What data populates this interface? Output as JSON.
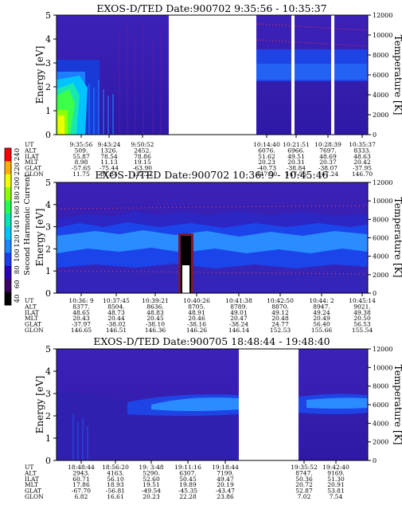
{
  "figure": {
    "colorbar": {
      "title": "Second Harmonic Current",
      "ticks": [
        "40",
        "60",
        "80",
        "100",
        "120",
        "140",
        "160",
        "180",
        "200",
        "220",
        "240"
      ],
      "colors": [
        "#000000",
        "#3a0066",
        "#2a00b8",
        "#1c3cf0",
        "#1a86ff",
        "#00c6ff",
        "#00e6b4",
        "#22ff50",
        "#8cff00",
        "#f0ff00",
        "#ffb000",
        "#ff0000"
      ]
    }
  },
  "chart_data": [
    {
      "type": "heatmap",
      "title": "EXOS-D/TED   Date:900702   9:35:56 - 10:35:37",
      "ylabel": "Energy [eV]",
      "y2label": "Temperature [K]",
      "ylim": [
        0,
        5
      ],
      "y2lim": [
        0,
        12000
      ],
      "yticks": [
        "0",
        "1",
        "2",
        "3",
        "4",
        "5"
      ],
      "y2ticks": [
        "0",
        "2000",
        "4000",
        "6000",
        "8000",
        "10000",
        "12000"
      ],
      "data_gaps": "no data 9:56 - 10:14; small gaps after 10:21 and 10:28",
      "orbit_table": {
        "row_labels": [
          "UT",
          "ALT",
          "ILAT",
          "MLT",
          "GLAT",
          "GLON"
        ],
        "columns": [
          [
            "9:35:56",
            "509.",
            "55.87",
            "8.98",
            "-57.65",
            "11.75"
          ],
          [
            "9:43:24",
            "1326.",
            "78.54",
            "11.13",
            "-75.44",
            "81.84"
          ],
          [
            "9:50:52",
            "2452.",
            "78.86",
            "19.15",
            "-63.90",
            "132.22"
          ],
          [
            "10:14:40",
            "6076.",
            "51.62",
            "20.23",
            "-40.73",
            "147.50"
          ],
          [
            "10:21:51",
            "6966.",
            "49.51",
            "20.31",
            "-38.84",
            "147.56"
          ],
          [
            "10:28:39",
            "7697.",
            "48.69",
            "20.37",
            "-38.07",
            "147.24"
          ],
          [
            "10:35:37",
            "8333.",
            "48.63",
            "20.42",
            "-37.95",
            "146.70"
          ]
        ]
      }
    },
    {
      "type": "heatmap",
      "title": "EXOS-D/TED   Date:900702  10:36: 9 - 10:45:46",
      "ylabel": "Energy [eV]",
      "y2label": "Temperature [K]",
      "ylim": [
        0,
        5
      ],
      "y2lim": [
        0,
        12000
      ],
      "yticks": [
        "0",
        "1",
        "2",
        "3",
        "4",
        "5"
      ],
      "y2ticks": [
        "0",
        "2000",
        "4000",
        "6000",
        "8000",
        "10000",
        "12000"
      ],
      "orbit_table": {
        "row_labels": [
          "UT",
          "ALT",
          "ILAT",
          "MLT",
          "GLAT",
          "GLON"
        ],
        "columns": [
          [
            "10:36: 9",
            "8377.",
            "48.65",
            "20.43",
            "-37.97",
            "146.65"
          ],
          [
            "10:37:45",
            "8504.",
            "48.73",
            "20.44",
            "-38.02",
            "146.51"
          ],
          [
            "10:39:21",
            "8636.",
            "48.83",
            "20.45",
            "-38.10",
            "146.36"
          ],
          [
            "10:40:26",
            "8705.",
            "48.91",
            "20.46",
            "-38.16",
            "146.26"
          ],
          [
            "10:41:38",
            "8789.",
            "49.01",
            "20.47",
            "-38.24",
            "146.14"
          ],
          [
            "10:42:50",
            "8870.",
            "49.12",
            "20.48",
            "24.77",
            "152.53"
          ],
          [
            "10:44: 2",
            "8947.",
            "49.24",
            "20.49",
            "56.40",
            "155.66"
          ],
          [
            "10:45:14",
            "9021.",
            "49.38",
            "20.50",
            "56.53",
            "155.54"
          ]
        ]
      }
    },
    {
      "type": "heatmap",
      "title": "EXOS-D/TED   Date:900705  18:48:44 - 19:48:40",
      "ylabel": "Energy [eV]",
      "y2label": "Temperature [K]",
      "ylim": [
        0,
        5
      ],
      "y2lim": [
        0,
        12000
      ],
      "yticks": [
        "0",
        "1",
        "2",
        "3",
        "4",
        "5"
      ],
      "y2ticks": [
        "0",
        "2000",
        "4000",
        "6000",
        "8000",
        "10000",
        "12000"
      ],
      "data_gaps": "no data about 19:26 - 19:35",
      "orbit_table": {
        "row_labels": [
          "UT",
          "ALT",
          "ILAT",
          "MLT",
          "GLAT",
          "GLON"
        ],
        "columns": [
          [
            "18:48:44",
            "2943.",
            "60.71",
            "17.86",
            "-67.70",
            "6.82"
          ],
          [
            "18:56:20",
            "4163.",
            "56.10",
            "18.93",
            "-56.81",
            "16.61"
          ],
          [
            "19: 3:48",
            "5290.",
            "52.60",
            "19.51",
            "-49.54",
            "20.23"
          ],
          [
            "19:11:16",
            "6307.",
            "50.45",
            "19.89",
            "-45.35",
            "22.28"
          ],
          [
            "19:18:44",
            "7199.",
            "49.47",
            "20.19",
            "-43.47",
            "23.86"
          ],
          [
            "19:35:52",
            "8747.",
            "50.36",
            "20.72",
            "52.87",
            "7.02"
          ],
          [
            "19:42:40",
            "9169.",
            "51.30",
            "20.91",
            "53.81",
            "7.54"
          ]
        ]
      }
    }
  ]
}
